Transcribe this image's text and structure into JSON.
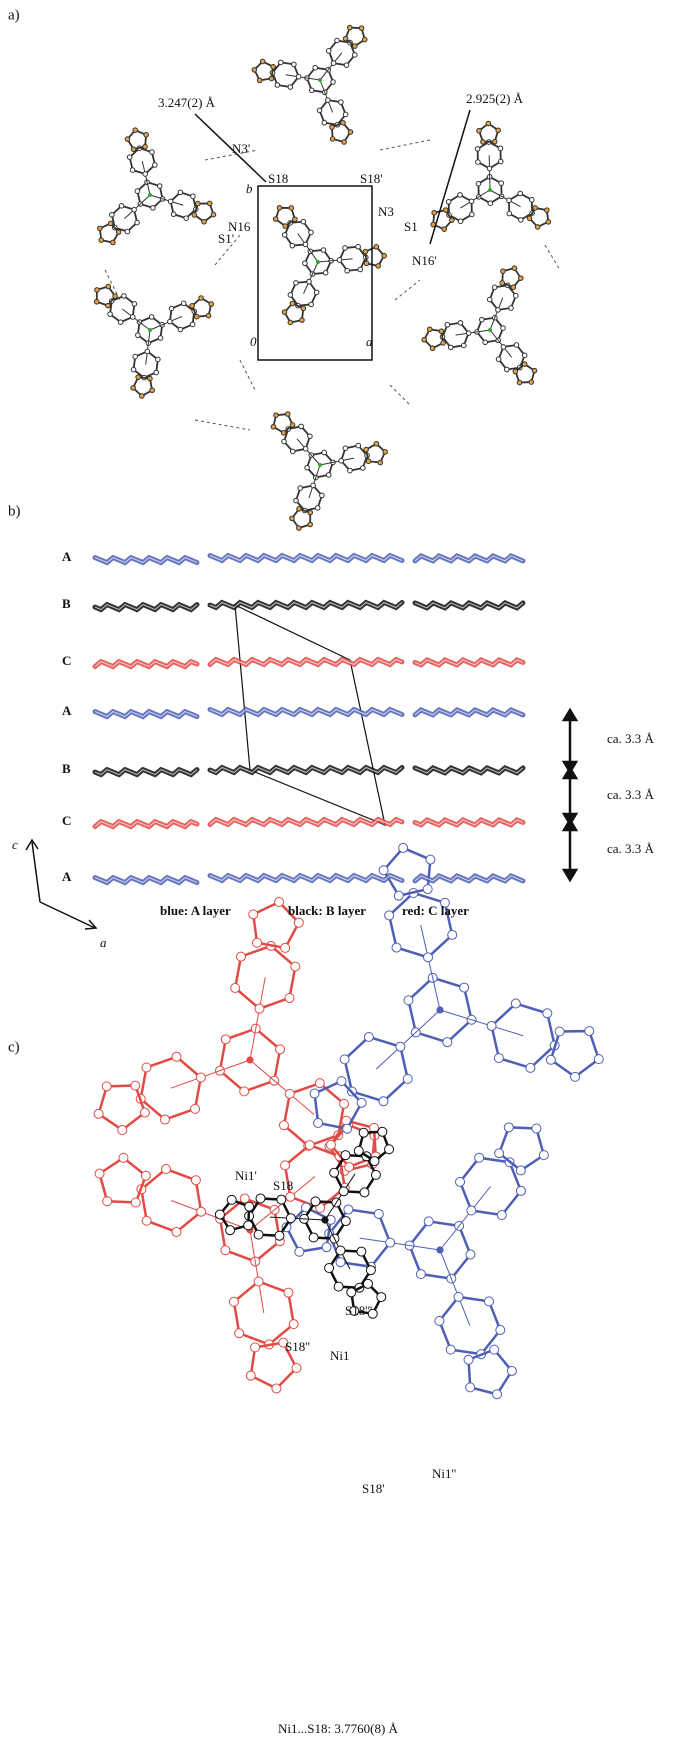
{
  "panel_a": {
    "label": "a)",
    "distance_1": "3.247(2) Å",
    "distance_2": "2.925(2) Å",
    "atom_labels": [
      "N3'",
      "S18",
      "S18'",
      "N3",
      "S1",
      "N16",
      "S1'",
      "N16'"
    ],
    "axis_labels": [
      "b",
      "0",
      "a"
    ]
  },
  "panel_b": {
    "label": "b)",
    "layer_labels": [
      "A",
      "B",
      "C",
      "A",
      "B",
      "C",
      "A"
    ],
    "spacings": [
      "ca. 3.3 Å",
      "ca. 3.3 Å",
      "ca. 3.3 Å"
    ],
    "axis_labels": [
      "c",
      "a"
    ],
    "legend": [
      "blue: A layer",
      "black: B layer",
      "red: C layer"
    ]
  },
  "panel_c": {
    "label": "c)",
    "atom_labels": [
      "Ni1'",
      "S18",
      "S18'''",
      "S18''",
      "Ni1",
      "Ni1''",
      "S18'"
    ],
    "caption": "Ni1...S18: 3.7760(8) Å"
  }
}
